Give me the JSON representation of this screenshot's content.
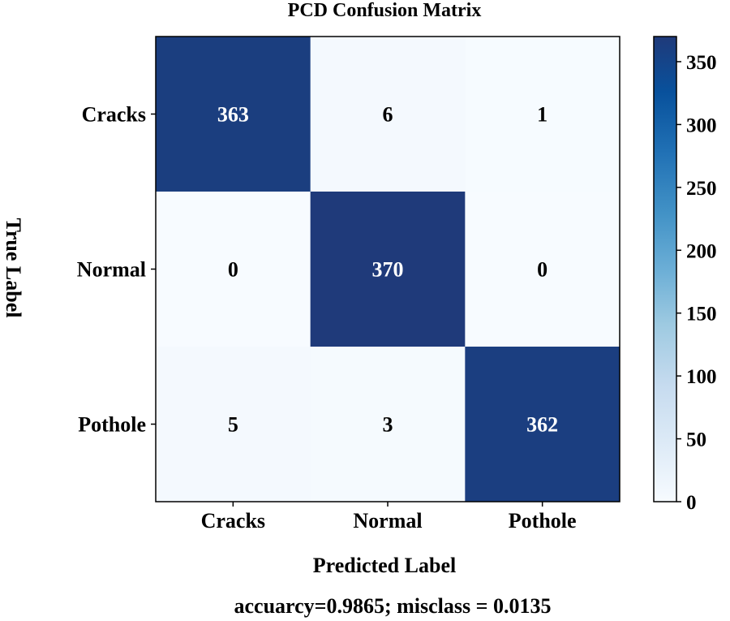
{
  "chart_data": {
    "type": "heatmap",
    "title": "PCD Confusion Matrix",
    "xlabel": "Predicted Label",
    "ylabel": "True Label",
    "x_categories": [
      "Cracks",
      "Normal",
      "Pothole"
    ],
    "y_categories": [
      "Cracks",
      "Normal",
      "Pothole"
    ],
    "matrix": [
      [
        363,
        6,
        1
      ],
      [
        0,
        370,
        0
      ],
      [
        5,
        3,
        362
      ]
    ],
    "colorbar": {
      "min": 0,
      "max": 370,
      "ticks": [
        0,
        50,
        100,
        150,
        200,
        250,
        300,
        350
      ],
      "colormap": "Blues",
      "color_low": "#f7fbff",
      "color_high": "#1f3a7a"
    },
    "footer": "accuarcy=0.9865; misclass = 0.0135"
  }
}
